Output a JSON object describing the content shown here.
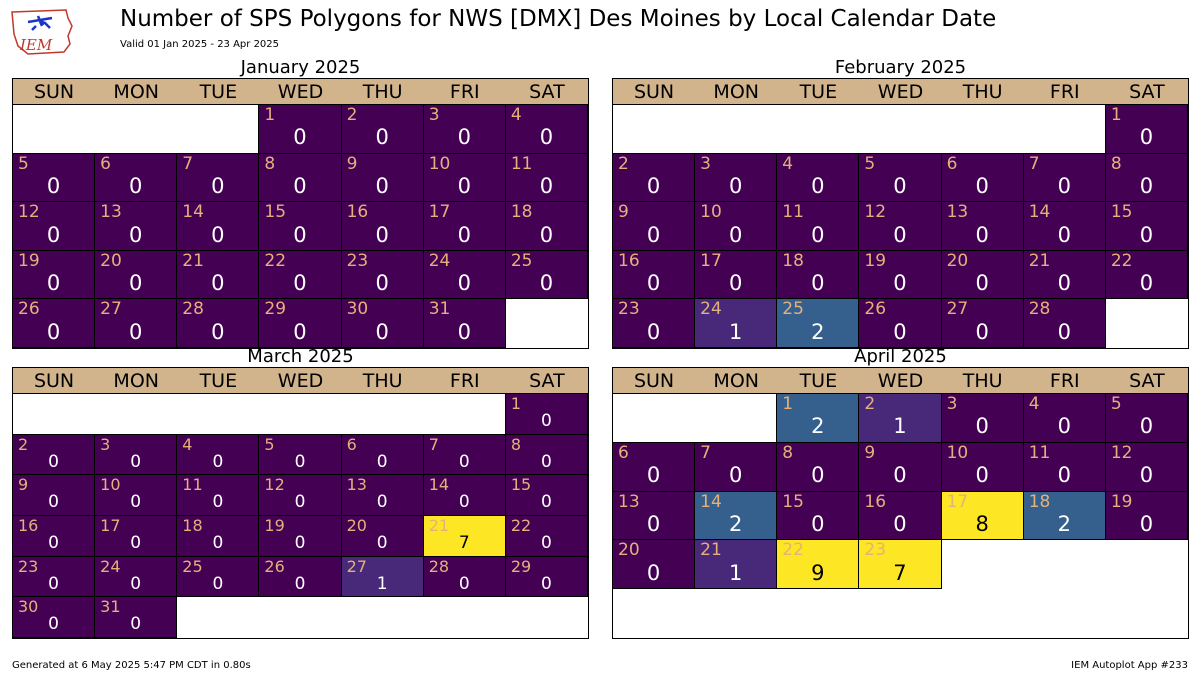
{
  "header": {
    "title": "Number of SPS Polygons for NWS [DMX] Des Moines by Local Calendar Date",
    "subtitle": "Valid 01 Jan 2025 - 23 Apr 2025",
    "logo_text": "IEM"
  },
  "footer": {
    "generated": "Generated at 6 May 2025 5:47 PM CDT in 0.80s",
    "app": "IEM Autoplot App #233"
  },
  "weekdays": [
    "SUN",
    "MON",
    "TUE",
    "WED",
    "THU",
    "FRI",
    "SAT"
  ],
  "colors": {
    "header_bg": "#d2b48c",
    "daynum_text": "#e6b07a",
    "scale": {
      "0": "#440154",
      "1": "#482878",
      "2": "#355f8d",
      "7": "#fde725",
      "8": "#fde725",
      "9": "#fde725"
    }
  },
  "chart_data": {
    "type": "calendar-heatmap",
    "months": [
      {
        "label": "January 2025",
        "first_weekday": 3,
        "days": 31,
        "counts": [
          0,
          0,
          0,
          0,
          0,
          0,
          0,
          0,
          0,
          0,
          0,
          0,
          0,
          0,
          0,
          0,
          0,
          0,
          0,
          0,
          0,
          0,
          0,
          0,
          0,
          0,
          0,
          0,
          0,
          0,
          0
        ]
      },
      {
        "label": "February 2025",
        "first_weekday": 6,
        "days": 28,
        "counts": [
          0,
          0,
          0,
          0,
          0,
          0,
          0,
          0,
          0,
          0,
          0,
          0,
          0,
          0,
          0,
          0,
          0,
          0,
          0,
          0,
          0,
          0,
          0,
          1,
          2,
          0,
          0,
          0
        ]
      },
      {
        "label": "March 2025",
        "first_weekday": 6,
        "days": 31,
        "counts": [
          0,
          0,
          0,
          0,
          0,
          0,
          0,
          0,
          0,
          0,
          0,
          0,
          0,
          0,
          0,
          0,
          0,
          0,
          0,
          0,
          7,
          0,
          0,
          0,
          0,
          0,
          1,
          0,
          0,
          0,
          0
        ]
      },
      {
        "label": "April 2025",
        "first_weekday": 2,
        "days": 23,
        "counts": [
          2,
          1,
          0,
          0,
          0,
          0,
          0,
          0,
          0,
          0,
          0,
          0,
          0,
          2,
          0,
          0,
          8,
          2,
          0,
          0,
          1,
          9,
          7
        ]
      }
    ]
  }
}
